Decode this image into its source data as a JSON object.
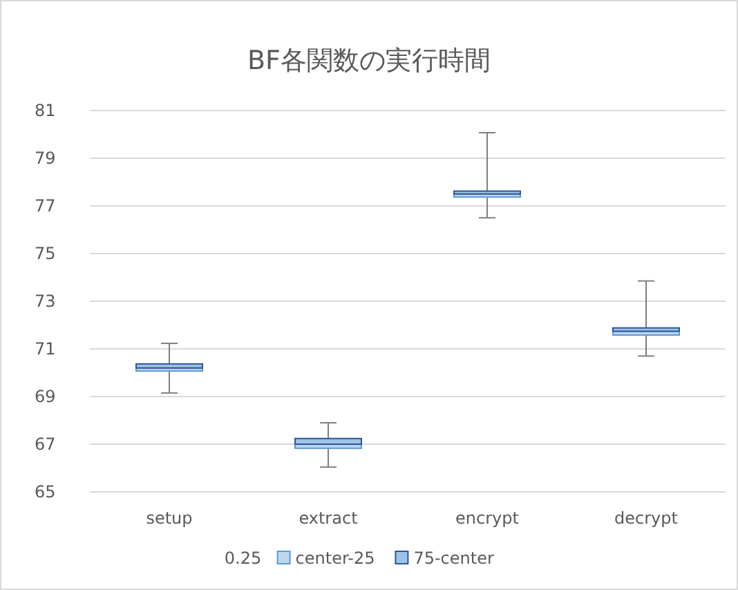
{
  "chart_data": {
    "type": "bar",
    "title": "BF各関数の実行時間",
    "categories": [
      "setup",
      "extract",
      "encrypt",
      "decrypt"
    ],
    "series": [
      {
        "name": "0.25",
        "color": null,
        "values": [
          null,
          null,
          null,
          null
        ]
      },
      {
        "name": "center-25",
        "color": "#bdd7ee",
        "base": [
          70.07,
          66.83,
          77.37,
          71.58
        ],
        "values": [
          0.13,
          0.17,
          0.13,
          0.16
        ]
      },
      {
        "name": "75-center",
        "color": "#9dc3e6",
        "base": [
          70.2,
          67.0,
          77.5,
          71.74
        ],
        "values": [
          0.17,
          0.24,
          0.12,
          0.14
        ],
        "errors": [
          [
            69.15,
            71.23
          ],
          [
            66.04,
            67.9
          ],
          [
            76.5,
            80.07
          ],
          [
            70.7,
            73.85
          ]
        ]
      }
    ],
    "ylim": [
      65,
      81
    ],
    "yticks": [
      65,
      67,
      69,
      71,
      73,
      75,
      77,
      79,
      81
    ],
    "grid": "y",
    "legend": "bottom"
  }
}
